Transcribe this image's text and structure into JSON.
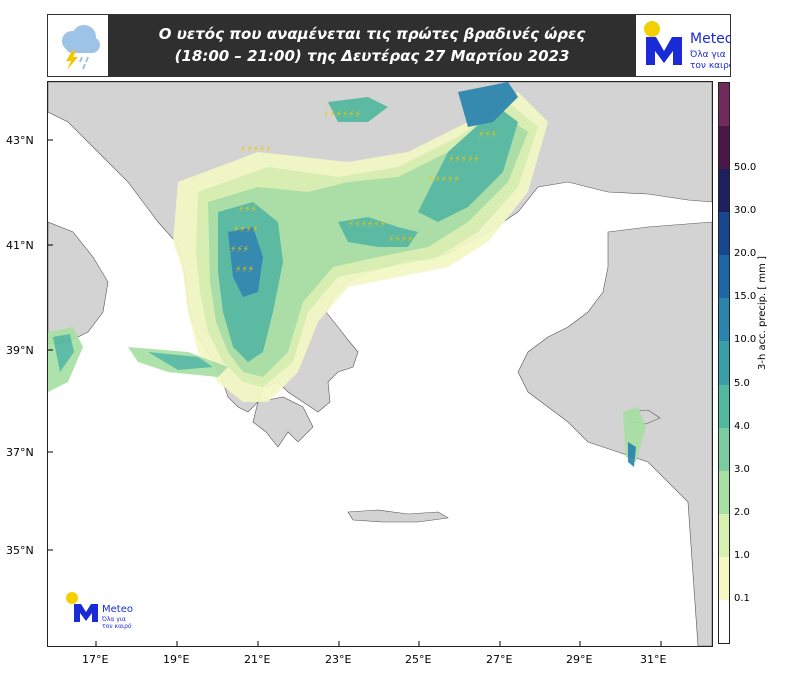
{
  "header": {
    "title_line1": "Ο υετός που αναμένεται τις πρώτες βραδινές ώρες",
    "title_line2": "(18:00 – 21:00) της Δευτέρας 27 Μαρτίου 2023",
    "weather_icon": "rain-thunder-cloud-icon"
  },
  "logo": {
    "brand": "Meteo",
    "tagline_line1": "Όλα για",
    "tagline_line2": "τον καιρό",
    "accent_color": "#1a2ad6",
    "sun_color": "#f5d000"
  },
  "map": {
    "lat_labels": [
      "43°N",
      "41°N",
      "39°N",
      "37°N",
      "35°N"
    ],
    "lon_labels": [
      "17°E",
      "19°E",
      "21°E",
      "23°E",
      "25°E",
      "27°E",
      "29°E",
      "31°E"
    ],
    "land_color": "#d3d3d3",
    "sea_color": "#ffffff"
  },
  "colorbar": {
    "axis_label": "3-h acc. precip. [ mm ]",
    "levels": [
      "0.1",
      "1.0",
      "2.0",
      "3.0",
      "4.0",
      "5.0",
      "10.0",
      "15.0",
      "20.0",
      "30.0",
      "50.0"
    ],
    "colors": [
      "#ffffff",
      "#f3f8c4",
      "#d8f0b0",
      "#a8e0a4",
      "#7ccca2",
      "#52b8a0",
      "#3b9fa8",
      "#2a84ad",
      "#1d66a8",
      "#17478f",
      "#1e1f5f",
      "#4a1749",
      "#702a5c"
    ]
  }
}
